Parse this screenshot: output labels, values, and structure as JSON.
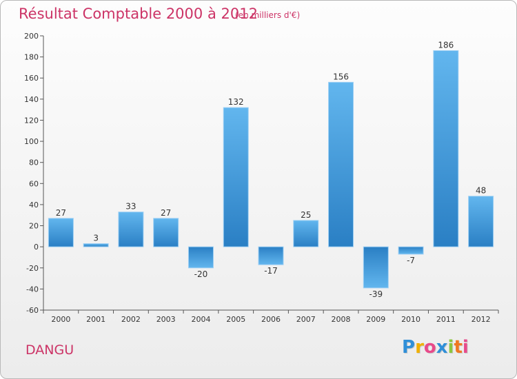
{
  "header": {
    "title": "Résultat Comptable 2000 à 2012",
    "subtitle": "(en milliers d'€)"
  },
  "footer": {
    "city": "DANGU",
    "logo_letters": [
      {
        "char": "P",
        "color": "#2f8fd8"
      },
      {
        "char": "r",
        "color": "#f0b000"
      },
      {
        "char": "o",
        "color": "#e84a8a"
      },
      {
        "char": "x",
        "color": "#2f8fd8"
      },
      {
        "char": "i",
        "color": "#8cc63f"
      },
      {
        "char": "t",
        "color": "#f07820"
      },
      {
        "char": "i",
        "color": "#e84a8a"
      }
    ]
  },
  "chart_data": {
    "type": "bar",
    "title": "Résultat Comptable 2000 à 2012",
    "subtitle": "(en milliers d'€)",
    "categories": [
      "2000",
      "2001",
      "2002",
      "2003",
      "2004",
      "2005",
      "2006",
      "2007",
      "2008",
      "2009",
      "2010",
      "2011",
      "2012"
    ],
    "values": [
      27,
      3,
      33,
      27,
      -20,
      132,
      -17,
      25,
      156,
      -39,
      -7,
      186,
      48
    ],
    "data_labels": [
      "27",
      "3",
      "33",
      "27",
      "-20",
      "132",
      "-17",
      "25",
      "156",
      "-39",
      "-7",
      "186",
      "48"
    ],
    "ylim": [
      -60,
      200
    ],
    "yticks": [
      -60,
      -40,
      -20,
      0,
      20,
      40,
      60,
      80,
      100,
      120,
      140,
      160,
      180,
      200
    ],
    "ytick_labels": [
      "-60",
      "-40",
      "-20",
      "0",
      "20",
      "40",
      "60",
      "80",
      "100",
      "120",
      "140",
      "160",
      "180",
      "200"
    ],
    "xlabel": "",
    "ylabel": "",
    "grid": false,
    "bar_color": "#4a9fe0"
  }
}
